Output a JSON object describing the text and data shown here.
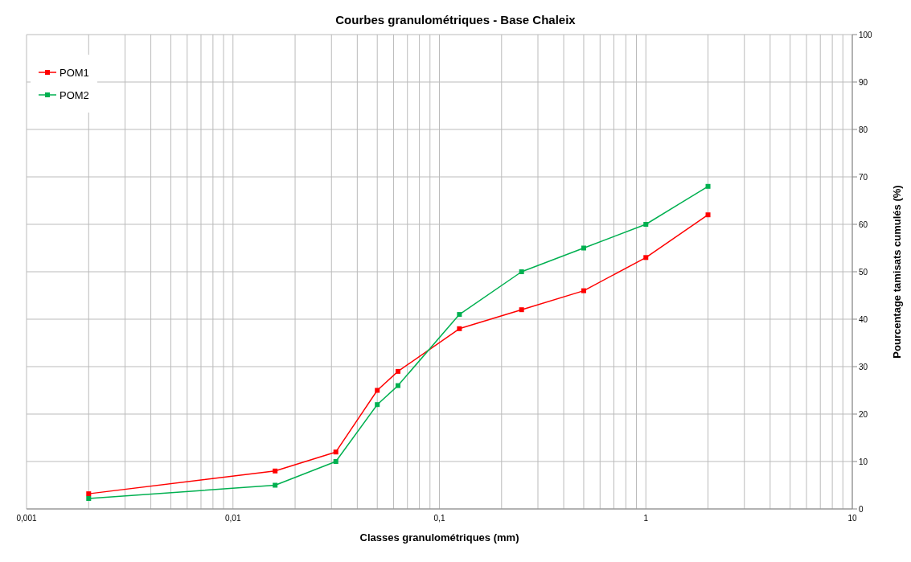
{
  "chart_data": {
    "type": "line",
    "title": "Courbes granulométriques - Base Chaleix",
    "xlabel": "Classes granulométriques (mm)",
    "ylabel": "Pourcentage tamisats cumulés (%)",
    "x": [
      0.002,
      0.016,
      0.0315,
      0.05,
      0.063,
      0.125,
      0.25,
      0.5,
      1,
      2
    ],
    "series": [
      {
        "name": "POM1",
        "color": "#ff0000",
        "values": [
          3.2,
          8,
          12,
          25,
          29,
          38,
          42,
          46,
          53,
          62
        ]
      },
      {
        "name": "POM2",
        "color": "#00b050",
        "values": [
          2.2,
          5,
          10,
          22,
          26,
          41,
          50,
          55,
          60,
          68
        ]
      }
    ],
    "log": "x",
    "xlim": [
      0.001,
      10
    ],
    "xticks": [
      {
        "value": 0.001,
        "label": "0,001"
      },
      {
        "value": 0.002,
        "label": null
      },
      {
        "value": 0.003,
        "label": null
      },
      {
        "value": 0.004,
        "label": null
      },
      {
        "value": 0.005,
        "label": null
      },
      {
        "value": 0.006,
        "label": null
      },
      {
        "value": 0.007,
        "label": null
      },
      {
        "value": 0.008,
        "label": null
      },
      {
        "value": 0.009,
        "label": null
      },
      {
        "value": 0.01,
        "label": "0,01"
      },
      {
        "value": 0.02,
        "label": null
      },
      {
        "value": 0.03,
        "label": null
      },
      {
        "value": 0.04,
        "label": null
      },
      {
        "value": 0.05,
        "label": null
      },
      {
        "value": 0.06,
        "label": null
      },
      {
        "value": 0.07,
        "label": null
      },
      {
        "value": 0.08,
        "label": null
      },
      {
        "value": 0.09,
        "label": null
      },
      {
        "value": 0.1,
        "label": "0,1"
      },
      {
        "value": 0.2,
        "label": null
      },
      {
        "value": 0.3,
        "label": null
      },
      {
        "value": 0.4,
        "label": null
      },
      {
        "value": 0.5,
        "label": null
      },
      {
        "value": 0.6,
        "label": null
      },
      {
        "value": 0.7,
        "label": null
      },
      {
        "value": 0.8,
        "label": null
      },
      {
        "value": 0.9,
        "label": null
      },
      {
        "value": 1,
        "label": "1"
      },
      {
        "value": 2,
        "label": null
      },
      {
        "value": 3,
        "label": null
      },
      {
        "value": 4,
        "label": null
      },
      {
        "value": 5,
        "label": null
      },
      {
        "value": 6,
        "label": null
      },
      {
        "value": 7,
        "label": null
      },
      {
        "value": 8,
        "label": null
      },
      {
        "value": 9,
        "label": null
      },
      {
        "value": 10,
        "label": "10"
      }
    ],
    "ylim": [
      0,
      100
    ],
    "yticks": [
      0,
      10,
      20,
      30,
      40,
      50,
      60,
      70,
      80,
      90,
      100
    ],
    "grid": true,
    "legend": "top left",
    "marker": "square",
    "line_style": "solid"
  }
}
